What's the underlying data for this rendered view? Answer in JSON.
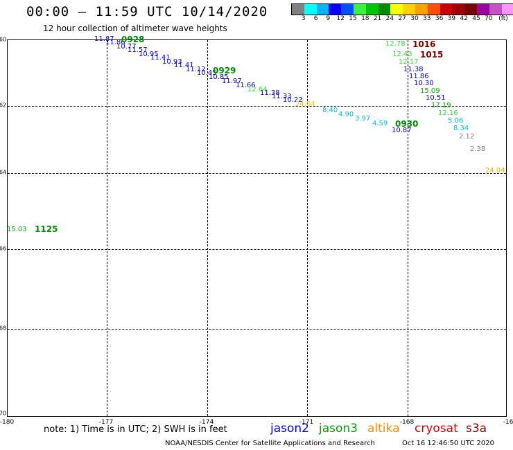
{
  "header": {
    "title": "00:00 – 11:59 UTC 10/14/2020",
    "subtitle": "12 hour collection of altimeter wave heights"
  },
  "legend": {
    "unit": "(ft)",
    "colors": [
      "#808080",
      "#00ffff",
      "#00b4ff",
      "#0000ff",
      "#0050ff",
      "#3cf03c",
      "#00c800",
      "#008c00",
      "#ffff00",
      "#ffd200",
      "#ffa000",
      "#ff5000",
      "#c80000",
      "#a00000",
      "#780000",
      "#a000a0",
      "#c850c8",
      "#ff96ff",
      "#000000"
    ],
    "labels": [
      "3",
      "6",
      "9",
      "12",
      "15",
      "18",
      "21",
      "24",
      "27",
      "30",
      "33",
      "36",
      "39",
      "42",
      "45",
      "70"
    ]
  },
  "map": {
    "lat_labels": [
      "-60",
      "-62",
      "-64",
      "-66",
      "-68",
      "-70"
    ],
    "lon_labels": [
      "-180",
      "-177",
      "-174",
      "-171",
      "-168",
      "-16"
    ]
  },
  "observations": [
    {
      "v": "11.87",
      "c": "#0000cc"
    },
    {
      "v": "11.86",
      "c": "#0000cc"
    },
    {
      "v": "10.77",
      "c": "#0000cc"
    },
    {
      "v": "11.57",
      "c": "#0000cc"
    },
    {
      "v": "10.95",
      "c": "#0000cc"
    },
    {
      "v": "11.41",
      "c": "#0000cc"
    },
    {
      "v": "10.93",
      "c": "#0000cc"
    },
    {
      "v": "11.41",
      "c": "#0000cc"
    },
    {
      "v": "11.12",
      "c": "#0000cc"
    },
    {
      "v": "10.45",
      "c": "#0000cc"
    },
    {
      "v": "10.85",
      "c": "#0000cc"
    },
    {
      "v": "11.97",
      "c": "#0000cc"
    },
    {
      "v": "11.66",
      "c": "#0000cc"
    },
    {
      "v": "12.64",
      "c": "#33dd33"
    },
    {
      "v": "11.38",
      "c": "#0000cc"
    },
    {
      "v": "11.33",
      "c": "#0000cc"
    },
    {
      "v": "10.22",
      "c": "#0000cc"
    },
    {
      "v": "24.04",
      "c": "#f0d000"
    },
    {
      "v": "8.40",
      "c": "#00bbdd"
    },
    {
      "v": "4.90",
      "c": "#00bbdd"
    },
    {
      "v": "3.97",
      "c": "#00bbdd"
    },
    {
      "v": "4.59",
      "c": "#00bbdd"
    },
    {
      "v": "10.87",
      "c": "#0000cc"
    },
    {
      "v": "12.78",
      "c": "#33dd33"
    },
    {
      "v": "12.43",
      "c": "#33dd33"
    },
    {
      "v": "12.17",
      "c": "#33dd33"
    },
    {
      "v": "11.38",
      "c": "#0000cc"
    },
    {
      "v": "11.86",
      "c": "#0000cc"
    },
    {
      "v": "10.30",
      "c": "#0000cc"
    },
    {
      "v": "15.09",
      "c": "#00aa00"
    },
    {
      "v": "10.51",
      "c": "#0000cc"
    },
    {
      "v": "17.19",
      "c": "#00aa00"
    },
    {
      "v": "12.16",
      "c": "#33dd33"
    },
    {
      "v": "5.06",
      "c": "#00bbdd"
    },
    {
      "v": "8.34",
      "c": "#00bbdd"
    },
    {
      "v": "2.12",
      "c": "#808080"
    },
    {
      "v": "2.38",
      "c": "#808080"
    },
    {
      "v": "24.04",
      "c": "#f0b800"
    },
    {
      "v": "15.03",
      "c": "#00aa00"
    }
  ],
  "time_labels": [
    {
      "v": "0928",
      "c": "#008c00"
    },
    {
      "v": "0929",
      "c": "#008c00"
    },
    {
      "v": "0930",
      "c": "#008c00"
    },
    {
      "v": "1016",
      "c": "#780000"
    },
    {
      "v": "1015",
      "c": "#780000"
    },
    {
      "v": "1125",
      "c": "#008c00"
    }
  ],
  "footer": {
    "note": "note:  1) Time is in UTC;  2) SWH is in feet",
    "satellites": [
      {
        "name": "jason2",
        "color": "#0000dd"
      },
      {
        "name": "jason3",
        "color": "#00a000"
      },
      {
        "name": "altika",
        "color": "#ff8c00"
      },
      {
        "name": "cryosat",
        "color": "#dd0000"
      },
      {
        "name": "s3a",
        "color": "#800000"
      }
    ],
    "credit": "NOAA/NESDIS Center for Satellite Applications and Research",
    "timestamp": "Oct 16 12:46:50 UTC 2020"
  }
}
